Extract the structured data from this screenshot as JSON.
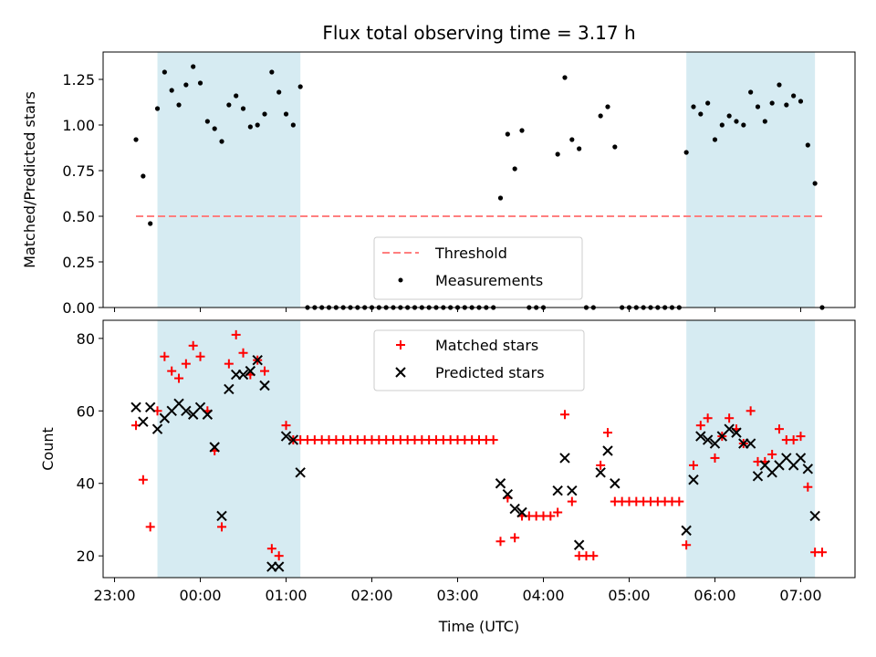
{
  "chart_data": [
    {
      "type": "scatter",
      "title": "Flux total observing time = 3.17 h",
      "xlabel": "",
      "ylabel": "Matched/Predicted stars",
      "xlim": [
        "22:52",
        "07:38"
      ],
      "ylim": [
        0,
        1.4
      ],
      "yticks": [
        "0.00",
        "0.25",
        "0.50",
        "0.75",
        "1.00",
        "1.25"
      ],
      "grid": false,
      "legend_position": "bottom-center",
      "shaded_intervals": [
        [
          "23:30",
          "01:10"
        ],
        [
          "05:40",
          "07:10"
        ]
      ],
      "shade_color": "#add8e6",
      "series": [
        {
          "name": "Threshold",
          "style": "dashed-line",
          "color": "#ff7f7f",
          "x": [
            "23:15",
            "07:15"
          ],
          "y": [
            0.5,
            0.5
          ]
        },
        {
          "name": "Measurements",
          "style": "dots",
          "color": "#000000",
          "points": [
            [
              "23:15",
              0.92
            ],
            [
              "23:20",
              0.72
            ],
            [
              "23:25",
              0.46
            ],
            [
              "23:30",
              1.09
            ],
            [
              "23:35",
              1.29
            ],
            [
              "23:40",
              1.19
            ],
            [
              "23:45",
              1.11
            ],
            [
              "23:50",
              1.22
            ],
            [
              "23:55",
              1.32
            ],
            [
              "00:00",
              1.23
            ],
            [
              "00:05",
              1.02
            ],
            [
              "00:10",
              0.98
            ],
            [
              "00:15",
              0.91
            ],
            [
              "00:20",
              1.11
            ],
            [
              "00:25",
              1.16
            ],
            [
              "00:30",
              1.09
            ],
            [
              "00:35",
              0.99
            ],
            [
              "00:40",
              1.0
            ],
            [
              "00:45",
              1.06
            ],
            [
              "00:50",
              1.29
            ],
            [
              "00:55",
              1.18
            ],
            [
              "01:00",
              1.06
            ],
            [
              "01:05",
              1.0
            ],
            [
              "01:10",
              1.21
            ],
            [
              "01:15",
              0
            ],
            [
              "01:20",
              0
            ],
            [
              "01:25",
              0
            ],
            [
              "01:30",
              0
            ],
            [
              "01:35",
              0
            ],
            [
              "01:40",
              0
            ],
            [
              "01:45",
              0
            ],
            [
              "01:50",
              0
            ],
            [
              "01:55",
              0
            ],
            [
              "02:00",
              0
            ],
            [
              "02:05",
              0
            ],
            [
              "02:10",
              0
            ],
            [
              "02:15",
              0
            ],
            [
              "02:20",
              0
            ],
            [
              "02:25",
              0
            ],
            [
              "02:30",
              0
            ],
            [
              "02:35",
              0
            ],
            [
              "02:40",
              0
            ],
            [
              "02:45",
              0
            ],
            [
              "02:50",
              0
            ],
            [
              "02:55",
              0
            ],
            [
              "03:00",
              0
            ],
            [
              "03:05",
              0
            ],
            [
              "03:10",
              0
            ],
            [
              "03:15",
              0
            ],
            [
              "03:20",
              0
            ],
            [
              "03:25",
              0
            ],
            [
              "03:30",
              0.6
            ],
            [
              "03:35",
              0.95
            ],
            [
              "03:40",
              0.76
            ],
            [
              "03:45",
              0.97
            ],
            [
              "03:50",
              0
            ],
            [
              "03:55",
              0
            ],
            [
              "04:00",
              0
            ],
            [
              "04:10",
              0.84
            ],
            [
              "04:15",
              1.26
            ],
            [
              "04:20",
              0.92
            ],
            [
              "04:25",
              0.87
            ],
            [
              "04:30",
              0
            ],
            [
              "04:35",
              0
            ],
            [
              "04:40",
              1.05
            ],
            [
              "04:45",
              1.1
            ],
            [
              "04:50",
              0.88
            ],
            [
              "04:55",
              0
            ],
            [
              "05:00",
              0
            ],
            [
              "05:05",
              0
            ],
            [
              "05:10",
              0
            ],
            [
              "05:15",
              0
            ],
            [
              "05:20",
              0
            ],
            [
              "05:25",
              0
            ],
            [
              "05:30",
              0
            ],
            [
              "05:35",
              0
            ],
            [
              "05:40",
              0.85
            ],
            [
              "05:45",
              1.1
            ],
            [
              "05:50",
              1.06
            ],
            [
              "05:55",
              1.12
            ],
            [
              "06:00",
              0.92
            ],
            [
              "06:05",
              1.0
            ],
            [
              "06:10",
              1.05
            ],
            [
              "06:15",
              1.02
            ],
            [
              "06:20",
              1.0
            ],
            [
              "06:25",
              1.18
            ],
            [
              "06:30",
              1.1
            ],
            [
              "06:35",
              1.02
            ],
            [
              "06:40",
              1.12
            ],
            [
              "06:45",
              1.22
            ],
            [
              "06:50",
              1.11
            ],
            [
              "06:55",
              1.16
            ],
            [
              "07:00",
              1.13
            ],
            [
              "07:05",
              0.89
            ],
            [
              "07:10",
              0.68
            ],
            [
              "07:15",
              0
            ]
          ]
        }
      ]
    },
    {
      "type": "scatter",
      "title": "",
      "xlabel": "Time (UTC)",
      "ylabel": "Count",
      "xlim": [
        "22:52",
        "07:38"
      ],
      "ylim": [
        14,
        85
      ],
      "xticks": [
        "23:00",
        "00:00",
        "01:00",
        "02:00",
        "03:00",
        "04:00",
        "05:00",
        "06:00",
        "07:00"
      ],
      "yticks": [
        "20",
        "40",
        "60",
        "80"
      ],
      "grid": false,
      "legend_position": "top-center",
      "shaded_intervals": [
        [
          "23:30",
          "01:10"
        ],
        [
          "05:40",
          "07:10"
        ]
      ],
      "shade_color": "#add8e6",
      "series": [
        {
          "name": "Matched stars",
          "marker": "plus",
          "color": "#ff0000",
          "points": [
            [
              "23:15",
              56
            ],
            [
              "23:20",
              41
            ],
            [
              "23:25",
              28
            ],
            [
              "23:30",
              60
            ],
            [
              "23:35",
              75
            ],
            [
              "23:40",
              71
            ],
            [
              "23:45",
              69
            ],
            [
              "23:50",
              73
            ],
            [
              "23:55",
              78
            ],
            [
              "00:00",
              75
            ],
            [
              "00:05",
              60
            ],
            [
              "00:10",
              49
            ],
            [
              "00:15",
              28
            ],
            [
              "00:20",
              73
            ],
            [
              "00:25",
              81
            ],
            [
              "00:30",
              76
            ],
            [
              "00:35",
              70
            ],
            [
              "00:40",
              74
            ],
            [
              "00:45",
              71
            ],
            [
              "00:50",
              22
            ],
            [
              "00:55",
              20
            ],
            [
              "01:00",
              56
            ],
            [
              "01:05",
              52
            ],
            [
              "01:10",
              52
            ],
            [
              "01:15",
              52
            ],
            [
              "01:20",
              52
            ],
            [
              "01:25",
              52
            ],
            [
              "01:30",
              52
            ],
            [
              "01:35",
              52
            ],
            [
              "01:40",
              52
            ],
            [
              "01:45",
              52
            ],
            [
              "01:50",
              52
            ],
            [
              "01:55",
              52
            ],
            [
              "02:00",
              52
            ],
            [
              "02:05",
              52
            ],
            [
              "02:10",
              52
            ],
            [
              "02:15",
              52
            ],
            [
              "02:20",
              52
            ],
            [
              "02:25",
              52
            ],
            [
              "02:30",
              52
            ],
            [
              "02:35",
              52
            ],
            [
              "02:40",
              52
            ],
            [
              "02:45",
              52
            ],
            [
              "02:50",
              52
            ],
            [
              "02:55",
              52
            ],
            [
              "03:00",
              52
            ],
            [
              "03:05",
              52
            ],
            [
              "03:10",
              52
            ],
            [
              "03:15",
              52
            ],
            [
              "03:20",
              52
            ],
            [
              "03:25",
              52
            ],
            [
              "03:30",
              24
            ],
            [
              "03:35",
              36
            ],
            [
              "03:40",
              25
            ],
            [
              "03:45",
              31
            ],
            [
              "03:50",
              31
            ],
            [
              "03:55",
              31
            ],
            [
              "04:00",
              31
            ],
            [
              "04:05",
              31
            ],
            [
              "04:10",
              32
            ],
            [
              "04:15",
              59
            ],
            [
              "04:20",
              35
            ],
            [
              "04:25",
              20
            ],
            [
              "04:30",
              20
            ],
            [
              "04:35",
              20
            ],
            [
              "04:40",
              45
            ],
            [
              "04:45",
              54
            ],
            [
              "04:50",
              35
            ],
            [
              "04:55",
              35
            ],
            [
              "05:00",
              35
            ],
            [
              "05:05",
              35
            ],
            [
              "05:10",
              35
            ],
            [
              "05:15",
              35
            ],
            [
              "05:20",
              35
            ],
            [
              "05:25",
              35
            ],
            [
              "05:30",
              35
            ],
            [
              "05:35",
              35
            ],
            [
              "05:40",
              23
            ],
            [
              "05:45",
              45
            ],
            [
              "05:50",
              56
            ],
            [
              "05:55",
              58
            ],
            [
              "06:00",
              47
            ],
            [
              "06:05",
              53
            ],
            [
              "06:10",
              58
            ],
            [
              "06:15",
              55
            ],
            [
              "06:20",
              51
            ],
            [
              "06:25",
              60
            ],
            [
              "06:30",
              46
            ],
            [
              "06:35",
              46
            ],
            [
              "06:40",
              48
            ],
            [
              "06:45",
              55
            ],
            [
              "06:50",
              52
            ],
            [
              "06:55",
              52
            ],
            [
              "07:00",
              53
            ],
            [
              "07:05",
              39
            ],
            [
              "07:10",
              21
            ],
            [
              "07:15",
              21
            ]
          ]
        },
        {
          "name": "Predicted stars",
          "marker": "x",
          "color": "#000000",
          "points": [
            [
              "23:15",
              61
            ],
            [
              "23:20",
              57
            ],
            [
              "23:25",
              61
            ],
            [
              "23:30",
              55
            ],
            [
              "23:35",
              58
            ],
            [
              "23:40",
              60
            ],
            [
              "23:45",
              62
            ],
            [
              "23:50",
              60
            ],
            [
              "23:55",
              59
            ],
            [
              "00:00",
              61
            ],
            [
              "00:05",
              59
            ],
            [
              "00:10",
              50
            ],
            [
              "00:15",
              31
            ],
            [
              "00:20",
              66
            ],
            [
              "00:25",
              70
            ],
            [
              "00:30",
              70
            ],
            [
              "00:35",
              71
            ],
            [
              "00:40",
              74
            ],
            [
              "00:45",
              67
            ],
            [
              "00:50",
              17
            ],
            [
              "00:55",
              17
            ],
            [
              "01:00",
              53
            ],
            [
              "01:05",
              52
            ],
            [
              "01:10",
              43
            ],
            [
              "03:30",
              40
            ],
            [
              "03:35",
              37
            ],
            [
              "03:40",
              33
            ],
            [
              "03:45",
              32
            ],
            [
              "04:10",
              38
            ],
            [
              "04:15",
              47
            ],
            [
              "04:20",
              38
            ],
            [
              "04:25",
              23
            ],
            [
              "04:40",
              43
            ],
            [
              "04:45",
              49
            ],
            [
              "04:50",
              40
            ],
            [
              "05:40",
              27
            ],
            [
              "05:45",
              41
            ],
            [
              "05:50",
              53
            ],
            [
              "05:55",
              52
            ],
            [
              "06:00",
              51
            ],
            [
              "06:05",
              53
            ],
            [
              "06:10",
              55
            ],
            [
              "06:15",
              54
            ],
            [
              "06:20",
              51
            ],
            [
              "06:25",
              51
            ],
            [
              "06:30",
              42
            ],
            [
              "06:35",
              45
            ],
            [
              "06:40",
              43
            ],
            [
              "06:45",
              45
            ],
            [
              "06:50",
              47
            ],
            [
              "06:55",
              45
            ],
            [
              "07:00",
              47
            ],
            [
              "07:05",
              44
            ],
            [
              "07:10",
              31
            ]
          ]
        }
      ]
    }
  ]
}
